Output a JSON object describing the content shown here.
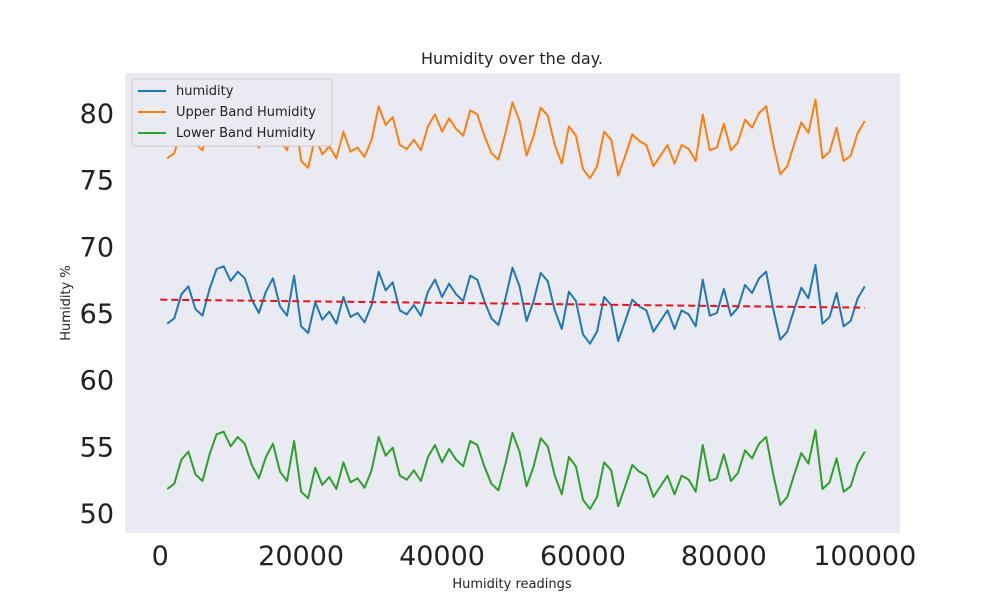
{
  "chart_data": {
    "type": "line",
    "title": "Humidity over the day.",
    "xlabel": "Humidity readings",
    "ylabel": "Humidity %",
    "xlim": [
      -5000,
      105000
    ],
    "ylim": [
      48.5,
      83.0
    ],
    "xticks": [
      0,
      20000,
      40000,
      60000,
      80000,
      100000
    ],
    "yticks": [
      50,
      55,
      60,
      65,
      70,
      75,
      80
    ],
    "grid": false,
    "legend_position": "top-left",
    "colors": {
      "background": "#eaeaf2",
      "humidity": "#1f77b4",
      "upper": "#ff7f0e",
      "lower": "#2ca02c",
      "trend": "#e8131b"
    },
    "x": [
      1000,
      2000,
      3000,
      4000,
      5000,
      6000,
      7000,
      8000,
      9000,
      10000,
      11000,
      12000,
      13000,
      14000,
      15000,
      16000,
      17000,
      18000,
      19000,
      20000,
      21000,
      22000,
      23000,
      24000,
      25000,
      26000,
      27000,
      28000,
      29000,
      30000,
      31000,
      32000,
      33000,
      34000,
      35000,
      36000,
      37000,
      38000,
      39000,
      40000,
      41000,
      42000,
      43000,
      44000,
      45000,
      46000,
      47000,
      48000,
      49000,
      50000,
      51000,
      52000,
      53000,
      54000,
      55000,
      56000,
      57000,
      58000,
      59000,
      60000,
      61000,
      62000,
      63000,
      64000,
      65000,
      66000,
      67000,
      68000,
      69000,
      70000,
      71000,
      72000,
      73000,
      74000,
      75000,
      76000,
      77000,
      78000,
      79000,
      80000,
      81000,
      82000,
      83000,
      84000,
      85000,
      86000,
      87000,
      88000,
      89000,
      90000,
      91000,
      92000,
      93000,
      94000,
      95000,
      96000,
      97000,
      98000,
      99000,
      100000
    ],
    "series": [
      {
        "name": "humidity",
        "values": [
          64.2,
          64.6,
          66.4,
          67.0,
          65.3,
          64.8,
          66.8,
          68.3,
          68.5,
          67.4,
          68.1,
          67.6,
          66.0,
          65.0,
          66.6,
          67.6,
          65.5,
          64.8,
          67.8,
          64.0,
          63.5,
          65.8,
          64.5,
          65.1,
          64.2,
          66.2,
          64.7,
          65.0,
          64.3,
          65.6,
          68.1,
          66.7,
          67.3,
          65.2,
          64.9,
          65.6,
          64.8,
          66.6,
          67.5,
          66.2,
          67.2,
          66.4,
          65.9,
          67.8,
          67.5,
          65.9,
          64.6,
          64.1,
          66.1,
          68.4,
          67.0,
          64.4,
          65.9,
          68.0,
          67.4,
          65.2,
          63.8,
          66.6,
          65.9,
          63.4,
          62.7,
          63.6,
          66.2,
          65.6,
          62.9,
          64.4,
          66.0,
          65.5,
          65.2,
          63.6,
          64.4,
          65.2,
          63.8,
          65.2,
          64.9,
          64.0,
          67.5,
          64.8,
          65.0,
          66.8,
          64.8,
          65.4,
          67.1,
          66.5,
          67.6,
          68.1,
          65.3,
          63.0,
          63.6,
          65.3,
          66.9,
          66.1,
          68.6,
          64.2,
          64.7,
          66.5,
          64.0,
          64.4,
          66.1,
          67.0
        ]
      },
      {
        "name": "Upper Band Humidity",
        "values": [
          76.6,
          77.0,
          78.8,
          79.4,
          77.7,
          77.2,
          79.2,
          80.7,
          80.9,
          79.8,
          80.5,
          80.0,
          78.4,
          77.4,
          79.0,
          80.0,
          77.9,
          77.2,
          80.2,
          76.4,
          75.9,
          78.2,
          76.9,
          77.5,
          76.6,
          78.6,
          77.1,
          77.4,
          76.7,
          78.0,
          80.5,
          79.1,
          79.7,
          77.6,
          77.3,
          78.0,
          77.2,
          79.0,
          79.9,
          78.6,
          79.6,
          78.8,
          78.3,
          80.2,
          79.9,
          78.3,
          77.0,
          76.5,
          78.5,
          80.8,
          79.4,
          76.8,
          78.3,
          80.4,
          79.8,
          77.6,
          76.2,
          79.0,
          78.3,
          75.8,
          75.1,
          76.0,
          78.6,
          78.0,
          75.3,
          76.8,
          78.4,
          77.9,
          77.6,
          76.0,
          76.8,
          77.6,
          76.2,
          77.6,
          77.3,
          76.4,
          79.9,
          77.2,
          77.4,
          79.2,
          77.2,
          77.8,
          79.5,
          78.9,
          80.0,
          80.5,
          77.7,
          75.4,
          76.0,
          77.7,
          79.3,
          78.5,
          81.0,
          76.6,
          77.1,
          78.9,
          76.4,
          76.8,
          78.5,
          79.4
        ]
      },
      {
        "name": "Lower Band Humidity",
        "values": [
          51.8,
          52.2,
          54.0,
          54.6,
          52.9,
          52.4,
          54.4,
          55.9,
          56.1,
          55.0,
          55.7,
          55.2,
          53.6,
          52.6,
          54.2,
          55.2,
          53.1,
          52.4,
          55.4,
          51.6,
          51.1,
          53.4,
          52.1,
          52.7,
          51.8,
          53.8,
          52.3,
          52.6,
          51.9,
          53.2,
          55.7,
          54.3,
          54.9,
          52.8,
          52.5,
          53.2,
          52.4,
          54.2,
          55.1,
          53.8,
          54.8,
          54.0,
          53.5,
          55.4,
          55.1,
          53.5,
          52.2,
          51.7,
          53.7,
          56.0,
          54.6,
          52.0,
          53.5,
          55.6,
          55.0,
          52.8,
          51.4,
          54.2,
          53.5,
          51.0,
          50.3,
          51.2,
          53.8,
          53.2,
          50.5,
          52.0,
          53.6,
          53.1,
          52.8,
          51.2,
          52.0,
          52.8,
          51.4,
          52.8,
          52.5,
          51.6,
          55.1,
          52.4,
          52.6,
          54.4,
          52.4,
          53.0,
          54.7,
          54.1,
          55.2,
          55.7,
          52.9,
          50.6,
          51.2,
          52.9,
          54.5,
          53.7,
          56.2,
          51.8,
          52.3,
          54.1,
          51.6,
          52.0,
          53.7,
          54.6
        ]
      }
    ],
    "trend": {
      "style": "dashed",
      "x": [
        0,
        100000
      ],
      "y": [
        66.0,
        65.4
      ]
    }
  }
}
